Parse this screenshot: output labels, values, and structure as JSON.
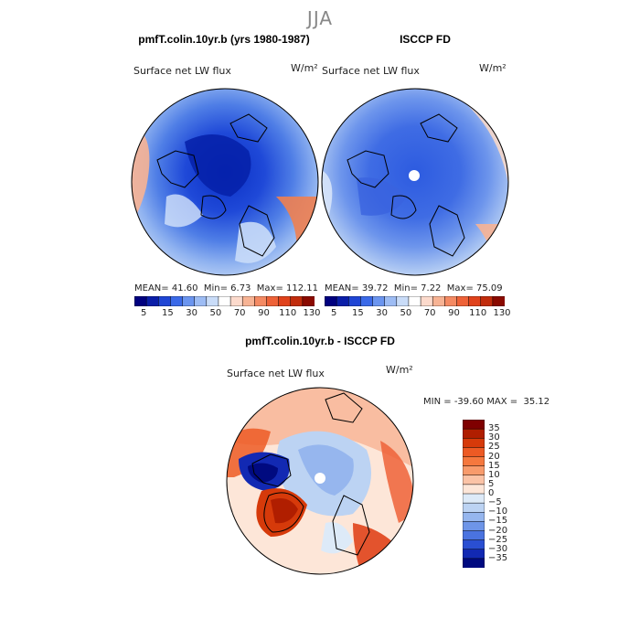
{
  "season": "JJA",
  "panels": [
    {
      "title": "pmfT.colin.10yr.b (yrs 1980-1987)",
      "variable": "Surface net LW flux",
      "units": "W/m²",
      "mean_label": "MEAN=",
      "mean": "41.60",
      "min_label": "Min=",
      "min": "6.73",
      "max_label": "Max=",
      "max": "112.11"
    },
    {
      "title": "ISCCP FD",
      "variable": "Surface net LW flux",
      "units": "W/m²",
      "mean_label": "MEAN=",
      "mean": "39.72",
      "min_label": "Min=",
      "min": "7.22",
      "max_label": "Max=",
      "max": "75.09"
    }
  ],
  "abs_colorbar": {
    "colors": [
      "#00007f",
      "#0a1ea8",
      "#1f45d4",
      "#3b6ae8",
      "#6b95ef",
      "#9dbcf4",
      "#c9dcf8",
      "#ffffff",
      "#fcdacc",
      "#f7b394",
      "#f48a63",
      "#ee6238",
      "#e0421b",
      "#c12c0c",
      "#8a0a00"
    ],
    "tick_labels": [
      "5",
      "15",
      "30",
      "50",
      "70",
      "90",
      "110",
      "130"
    ]
  },
  "diff_panel": {
    "title": "pmfT.colin.10yr.b - ISCCP FD",
    "variable": "Surface net LW flux",
    "units": "W/m²",
    "min_label": "MIN =",
    "min": "-39.60",
    "max_label": "MAX =",
    "max": "35.12"
  },
  "diff_colorbar": {
    "colors_top_to_bottom": [
      "#7f0000",
      "#b01e00",
      "#d63a0a",
      "#ed5a24",
      "#f5783e",
      "#f89b6c",
      "#fbc3a6",
      "#fde6d8",
      "#ddeaf8",
      "#bcd3f3",
      "#96b6ee",
      "#6e95e8",
      "#4a73e0",
      "#2a4fd2",
      "#1229b3",
      "#000a80"
    ],
    "tick_labels": [
      "35",
      "30",
      "25",
      "20",
      "15",
      "10",
      "5",
      "0",
      "−5",
      "−10",
      "−15",
      "−20",
      "−25",
      "−30",
      "−35"
    ]
  },
  "colors": {
    "land_outline": "#000000",
    "map_border": "#000000"
  }
}
